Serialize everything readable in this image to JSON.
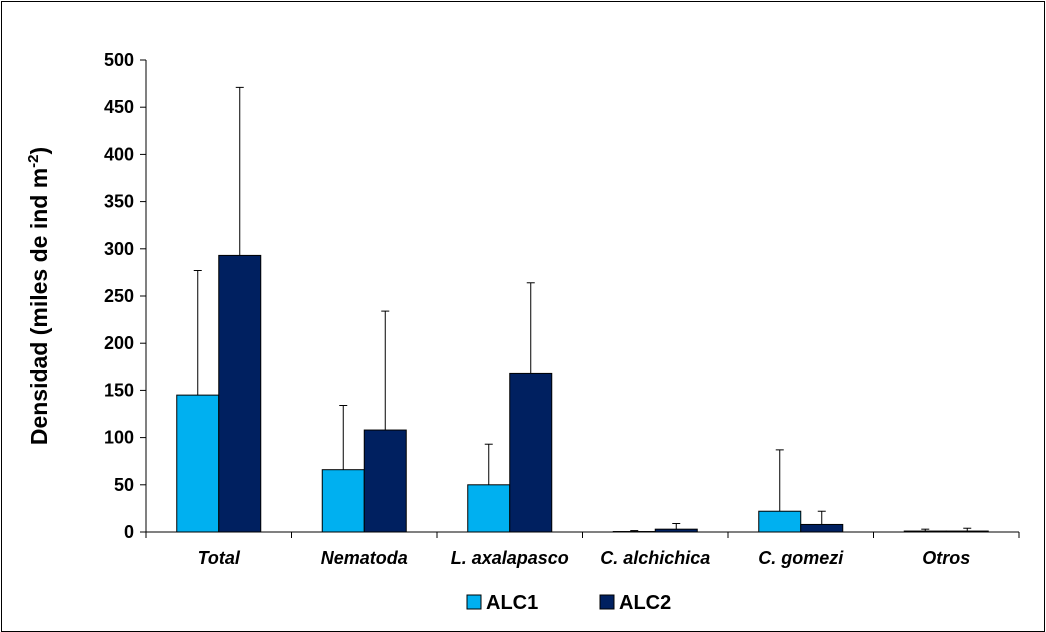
{
  "chart_data": {
    "type": "bar",
    "categories": [
      "Total",
      "Nematoda",
      "L. axalapasco",
      "C. alchichica",
      "C. gomezi",
      "Otros"
    ],
    "series": [
      {
        "name": "ALC1",
        "color": "#00B0F0",
        "values": [
          145,
          66,
          50,
          0.5,
          22,
          1
        ],
        "error_upper": [
          277,
          134,
          93,
          1.5,
          87,
          3
        ]
      },
      {
        "name": "ALC2",
        "color": "#002060",
        "values": [
          293,
          108,
          168,
          3,
          8,
          1
        ],
        "error_upper": [
          471,
          234,
          264,
          9,
          22,
          4
        ]
      }
    ],
    "ylabel_main": "Densidad (miles de ind m",
    "ylabel_sup": "-2",
    "ylabel_end": ")",
    "ylim": [
      0,
      500
    ],
    "yticks": [
      "0",
      "50",
      "100",
      "150",
      "200",
      "250",
      "300",
      "350",
      "400",
      "450",
      "500"
    ],
    "grid": false,
    "legend_position": "bottom"
  }
}
